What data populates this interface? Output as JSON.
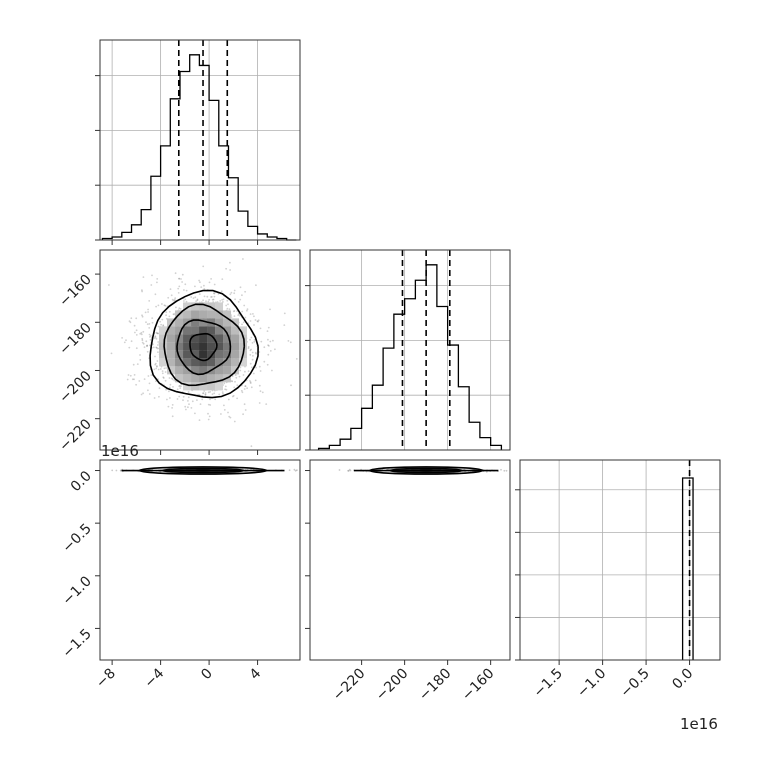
{
  "figure": {
    "offset_labels": {
      "row3_y": "1e16",
      "col3_x": "1e16"
    },
    "colors": {
      "line": "#000000",
      "grid": "#b0b0b0",
      "scatter": "#7a7a7a",
      "frame": "#333333"
    }
  },
  "chart_data": [
    {
      "type": "histogram",
      "panel": "diag-1",
      "xlim": [
        -9,
        7.5
      ],
      "xticks": [
        "-8",
        "-4",
        "0",
        "4"
      ],
      "bin_edges": [
        -8.8,
        -8.0,
        -7.2,
        -6.4,
        -5.6,
        -4.8,
        -4.0,
        -3.2,
        -2.4,
        -1.6,
        -0.8,
        0.0,
        0.8,
        1.6,
        2.4,
        3.2,
        4.0,
        4.8,
        5.6,
        6.4,
        7.2
      ],
      "counts": [
        1,
        2,
        5,
        10,
        20,
        42,
        62,
        93,
        111,
        122,
        115,
        92,
        62,
        41,
        19,
        9,
        4,
        2,
        1,
        0
      ],
      "quantiles": [
        -2.5,
        -0.5,
        1.5
      ],
      "grid": true
    },
    {
      "type": "scatter-density",
      "panel": "lower-2-1",
      "xlim": [
        -9,
        7.5
      ],
      "ylim": [
        -233,
        -150
      ],
      "yticks": [
        "-160",
        "-180",
        "-200",
        "-220"
      ],
      "center": [
        -0.5,
        -190
      ],
      "sigma": [
        2.1,
        10.5
      ],
      "contour_levels_sigma": [
        0.5,
        1.0,
        1.5,
        2.0
      ],
      "grid": false
    },
    {
      "type": "histogram",
      "panel": "diag-2",
      "xlim": [
        -244,
        -151
      ],
      "bin_edges": [
        -240,
        -235,
        -230,
        -225,
        -220,
        -215,
        -210,
        -205,
        -200,
        -195,
        -190,
        -185,
        -180,
        -175,
        -170,
        -165,
        -160,
        -155
      ],
      "counts": [
        1,
        3,
        7,
        14,
        27,
        42,
        66,
        88,
        98,
        110,
        120,
        93,
        68,
        41,
        18,
        8,
        3
      ],
      "quantiles": [
        -201,
        -190,
        -179
      ],
      "grid": true
    },
    {
      "type": "scatter-density",
      "panel": "lower-3-1",
      "xlim": [
        -9,
        7.5
      ],
      "ylim": [
        -1.8,
        0.1
      ],
      "xticks": [
        "-8",
        "-4",
        "0",
        "4"
      ],
      "yticks": [
        "0.0",
        "-0.5",
        "-1.0",
        "-1.5"
      ],
      "center": [
        -0.5,
        0.0
      ],
      "spread_x": 2.1,
      "grid": false
    },
    {
      "type": "scatter-density",
      "panel": "lower-3-2",
      "xlim": [
        -244,
        -151
      ],
      "ylim": [
        -1.8,
        0.1
      ],
      "xticks": [
        "-220",
        "-200",
        "-180",
        "-160"
      ],
      "center": [
        -190,
        0.0
      ],
      "spread_x": 10.5,
      "grid": false
    },
    {
      "type": "histogram",
      "panel": "diag-3",
      "xlim": [
        -1.95,
        0.35
      ],
      "xticks": [
        "-1.5",
        "-1.0",
        "-0.5",
        "0.0"
      ],
      "bin_edges": [
        -0.08,
        0.0,
        0.04
      ],
      "counts": [
        1,
        1
      ],
      "quantiles": [
        0.0
      ],
      "grid": true
    }
  ]
}
